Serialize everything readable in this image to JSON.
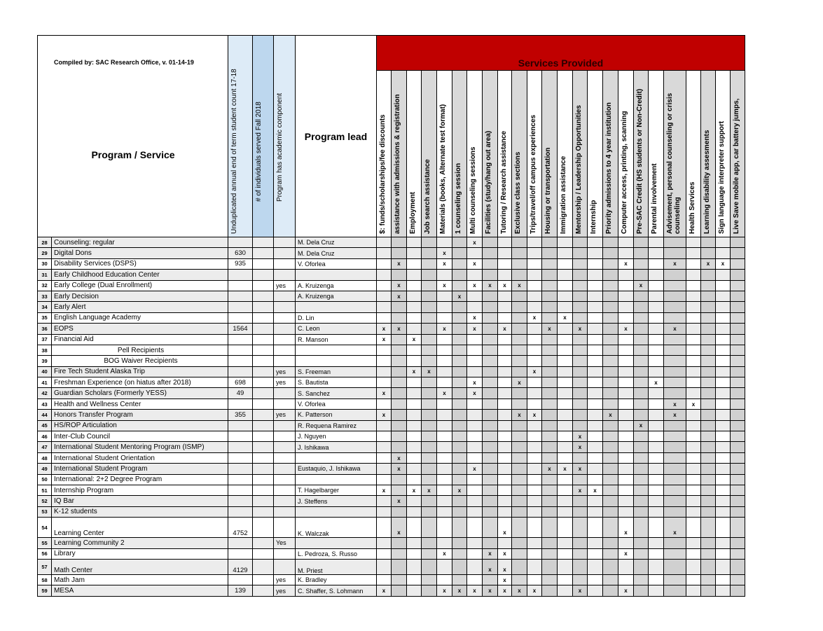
{
  "header": {
    "compiled_by": "Compiled by: SAC Research Office, v. 01-14-19",
    "program_service": "Program / Service",
    "count_col": "Unduplicated annual end of term student count 17-18",
    "individuals_col": "# of individuals served Fall 2018",
    "academic_col": "Program has academic component",
    "lead_col": "Program lead",
    "services_title": "Services Provided"
  },
  "colors": {
    "services_band": "#c00000",
    "shaded_column": "#d9d9d9",
    "light_blue": "#ddebf7",
    "blue": "#bdd7ee"
  },
  "services": [
    "$: funds/scholarships/fee discounts",
    "assistance with admissions & registration",
    "Employment",
    "Job search assistance",
    "Materials (books, Alternate test format)",
    "1 counseling session",
    "Multi counseling sessions",
    "Facilities (study/hang out area)",
    "Tutoring / Research assistance",
    "Exclusive class sections",
    "Trips/travel/off campus experiences",
    "Housing or transportation",
    "Immigration assistance",
    "Mentorship / Leadership Opportunities",
    "Internship",
    "Priority admissions to 4 year institution",
    "Computer access,  printing, scanning",
    "Pre-SAC Credit (HS students or Non-Credit)",
    "Parental involvement",
    "Advisement, personal counseling or crisis counseling",
    "Health Services",
    "Learning disability assesments",
    "Sign language interpreter support",
    "Live Save mobile app, car battery jumps,"
  ],
  "mark": "x",
  "rows": [
    {
      "n": "28",
      "program": "Counseling: regular",
      "count": "",
      "individuals": "",
      "academic": "",
      "lead": "M. Dela Cruz",
      "x": [
        6
      ]
    },
    {
      "n": "29",
      "program": "Digital Dons",
      "count": "630",
      "individuals": "",
      "academic": "",
      "lead": "M. Dela Cruz",
      "x": [
        4
      ]
    },
    {
      "n": "30",
      "program": "Disability Services (DSPS)",
      "count": "935",
      "individuals": "",
      "academic": "",
      "lead": "V. Oforlea",
      "x": [
        1,
        4,
        6,
        16,
        19,
        21,
        22
      ]
    },
    {
      "n": "31",
      "program": "Early Childhood Education Center",
      "count": "",
      "individuals": "",
      "academic": "",
      "lead": "",
      "x": []
    },
    {
      "n": "32",
      "program": "Early College (Dual Enrollment)",
      "count": "",
      "individuals": "",
      "academic": "yes",
      "lead": "A. Kruizenga",
      "x": [
        1,
        4,
        6,
        7,
        8,
        9,
        17
      ]
    },
    {
      "n": "33",
      "program": "Early Decision",
      "count": "",
      "individuals": "",
      "academic": "",
      "lead": "A. Kruizenga",
      "x": [
        1,
        5
      ]
    },
    {
      "n": "34",
      "program": "Early Alert",
      "count": "",
      "individuals": "",
      "academic": "",
      "lead": "",
      "x": []
    },
    {
      "n": "35",
      "program": "English Language Academy",
      "count": "",
      "individuals": "",
      "academic": "",
      "lead": "D. Lin",
      "x": [
        6,
        10,
        12
      ]
    },
    {
      "n": "36",
      "program": "EOPS",
      "count": "1564",
      "individuals": "",
      "academic": "",
      "lead": "C. Leon",
      "x": [
        0,
        1,
        4,
        6,
        8,
        11,
        13,
        16,
        19
      ]
    },
    {
      "n": "37",
      "program": "Financial Aid",
      "count": "",
      "individuals": "",
      "academic": "",
      "lead": "R. Manson",
      "x": [
        0,
        2
      ]
    },
    {
      "n": "38",
      "program": "Pell Recipients",
      "count": "",
      "individuals": "",
      "academic": "",
      "lead": "",
      "x": [],
      "center": true
    },
    {
      "n": "39",
      "program": "BOG Waiver Recipients",
      "count": "",
      "individuals": "",
      "academic": "",
      "lead": "",
      "x": [],
      "center": true
    },
    {
      "n": "40",
      "program": "Fire Tech Student Alaska Trip",
      "count": "",
      "individuals": "",
      "academic": "yes",
      "lead": "S. Freeman",
      "x": [
        2,
        3,
        10
      ]
    },
    {
      "n": "41",
      "program": "Freshman Experience (on hiatus after 2018)",
      "count": "698",
      "individuals": "",
      "academic": "yes",
      "lead": "S. Bautista",
      "x": [
        6,
        9,
        18
      ]
    },
    {
      "n": "42",
      "program": "Guardian Scholars (Formerly YESS)",
      "count": "49",
      "individuals": "",
      "academic": "",
      "lead": "S. Sanchez",
      "x": [
        0,
        4,
        6
      ]
    },
    {
      "n": "43",
      "program": "Health and Wellness Center",
      "count": "",
      "individuals": "",
      "academic": "",
      "lead": "V. Oforlea",
      "x": [
        19,
        20
      ]
    },
    {
      "n": "44",
      "program": "Honors Transfer Program",
      "count": "355",
      "individuals": "",
      "academic": "yes",
      "lead": "K. Patterson",
      "x": [
        0,
        9,
        10,
        15,
        19
      ]
    },
    {
      "n": "45",
      "program": "HS/ROP Articulation",
      "count": "",
      "individuals": "",
      "academic": "",
      "lead": "R. Requena Ramirez",
      "x": [
        17
      ]
    },
    {
      "n": "46",
      "program": "Inter-Club Council",
      "count": "",
      "individuals": "",
      "academic": "",
      "lead": "J. Nguyen",
      "x": [
        13
      ]
    },
    {
      "n": "47",
      "program": "International Student Mentoring Program (ISMP)",
      "count": "",
      "individuals": "",
      "academic": "",
      "lead": "J. Ishikawa",
      "x": [
        13
      ]
    },
    {
      "n": "48",
      "program": "International Student Orientation",
      "count": "",
      "individuals": "",
      "academic": "",
      "lead": "",
      "x": [
        1
      ]
    },
    {
      "n": "49",
      "program": "International Student Program",
      "count": "",
      "individuals": "",
      "academic": "",
      "lead": "Eustaquio, J. Ishikawa",
      "x": [
        1,
        6,
        11,
        12,
        13
      ]
    },
    {
      "n": "50",
      "program": "International: 2+2 Degree Program",
      "count": "",
      "individuals": "",
      "academic": "",
      "lead": "",
      "x": []
    },
    {
      "n": "51",
      "program": "Internship Program",
      "count": "",
      "individuals": "",
      "academic": "",
      "lead": "T. Hagelbarger",
      "x": [
        0,
        2,
        3,
        5,
        13,
        14
      ]
    },
    {
      "n": "52",
      "program": "IQ Bar",
      "count": "",
      "individuals": "",
      "academic": "",
      "lead": "J. Steffens",
      "x": [
        1
      ]
    },
    {
      "n": "53",
      "program": "K-12 students",
      "count": "",
      "individuals": "",
      "academic": "",
      "lead": "",
      "x": []
    },
    {
      "n": "54",
      "program": "Learning Center",
      "count": "4752",
      "individuals": "",
      "academic": "",
      "lead": "K. Walczak",
      "x": [
        1,
        8,
        16,
        19
      ]
    },
    {
      "n": "55",
      "program": "Learning Community 2",
      "count": "",
      "individuals": "",
      "academic": "Yes",
      "lead": "",
      "x": []
    },
    {
      "n": "56",
      "program": "Library",
      "count": "",
      "individuals": "",
      "academic": "",
      "lead": "L. Pedroza, S. Russo",
      "x": [
        4,
        7,
        8,
        16
      ]
    },
    {
      "n": "57",
      "program": "Math Center",
      "count": "4129",
      "individuals": "",
      "academic": "",
      "lead": "M. Priest",
      "x": [
        7,
        8
      ]
    },
    {
      "n": "58",
      "program": "Math Jam",
      "count": "",
      "individuals": "",
      "academic": "yes",
      "lead": "K. Bradley",
      "x": [
        8
      ]
    },
    {
      "n": "59",
      "program": "MESA",
      "count": "139",
      "individuals": "",
      "academic": "yes",
      "lead": "C. Shaffer, S. Lohmann",
      "x": [
        0,
        4,
        5,
        6,
        7,
        8,
        9,
        10,
        13,
        16
      ]
    }
  ]
}
